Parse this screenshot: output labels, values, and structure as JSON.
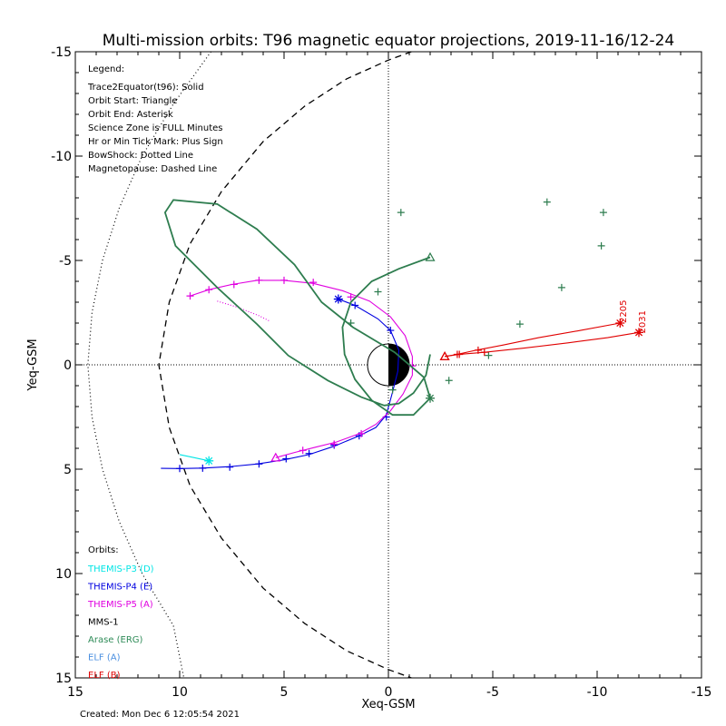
{
  "chart_data": {
    "type": "line",
    "title": "Multi-mission orbits: T96 magnetic equator projections, 2019-11-16/12-24",
    "xlabel": "Xeq-GSM",
    "ylabel": "Yeq-GSM",
    "xlim": [
      15,
      -15
    ],
    "ylim": [
      -15,
      15
    ],
    "x_ticks": [
      "15",
      "10",
      "5",
      "0",
      "-5",
      "-10",
      "-15"
    ],
    "y_ticks": [
      "-15",
      "-10",
      "-5",
      "0",
      "5",
      "10",
      "15"
    ],
    "legend_title": "Legend:",
    "legend_lines": [
      "Trace2Equator(t96): Solid",
      "Orbit Start: Triangle",
      "Orbit End: Asterisk",
      "Science Zone is FULL Minutes",
      "Hr or Min Tick Mark: Plus Sign",
      "BowShock: Dotted Line",
      "Magnetopause: Dashed Line"
    ],
    "orbits_title": "Orbits:",
    "orbit_labels": [
      {
        "name": "THEMIS-P3 (D)",
        "color": "#00e5e5"
      },
      {
        "name": "THEMIS-P4 (E)",
        "color": "#0000e0"
      },
      {
        "name": "THEMIS-P5 (A)",
        "color": "#e000e0"
      },
      {
        "name": "MMS-1",
        "color": "#000000"
      },
      {
        "name": "Arase (ERG)",
        "color": "#2e8b57"
      },
      {
        "name": "ELF (A)",
        "color": "#4a8fe0"
      },
      {
        "name": "ELF (B)",
        "color": "#e00000"
      }
    ],
    "annotations": [
      {
        "text": "2205",
        "x": -11.4,
        "y": -2.0
      },
      {
        "text": "2031",
        "x": -12.3,
        "y": -1.5
      }
    ],
    "created": "Created: Mon Dec  6 12:05:54 2021",
    "series": [
      {
        "name": "THEMIS-P3 (D)",
        "color": "#00e5e5",
        "x": [
          10.0,
          9.3,
          8.6
        ],
        "y": [
          4.3,
          4.45,
          4.6
        ],
        "start": null,
        "end": [
          8.6,
          4.6
        ],
        "ticks": []
      },
      {
        "name": "THEMIS-P4 (E)",
        "color": "#0000e0",
        "x": [
          2.4,
          1.6,
          0.5,
          -0.1,
          -0.5,
          -0.45,
          -0.2,
          0.1,
          0.6,
          1.4,
          2.6,
          3.8,
          5.0,
          6.3,
          7.6,
          8.9,
          10.0,
          10.9
        ],
        "y": [
          -3.15,
          -2.85,
          -2.2,
          -1.65,
          -0.7,
          0.3,
          1.3,
          2.4,
          3.0,
          3.4,
          3.9,
          4.3,
          4.55,
          4.75,
          4.88,
          4.95,
          4.97,
          4.96
        ],
        "start": null,
        "end": [
          2.4,
          -3.15
        ],
        "ticks": [
          [
            1.6,
            -2.85
          ],
          [
            -0.1,
            -1.65
          ],
          [
            0.1,
            2.5
          ],
          [
            1.4,
            3.4
          ],
          [
            2.6,
            3.85
          ],
          [
            3.8,
            4.25
          ],
          [
            4.9,
            4.5
          ],
          [
            6.2,
            4.75
          ],
          [
            7.6,
            4.9
          ],
          [
            8.9,
            4.95
          ],
          [
            10.0,
            4.97
          ]
        ]
      },
      {
        "name": "THEMIS-P5 (A)",
        "color": "#e000e0",
        "x": [
          5.4,
          4.5,
          3.5,
          2.5,
          1.4,
          0.6,
          -0.1,
          -0.7,
          -1.15,
          -1.15,
          -0.8,
          -0.1,
          0.9,
          2.2,
          3.6,
          5.0,
          6.3,
          7.5,
          8.6,
          9.5
        ],
        "y": [
          4.45,
          4.2,
          3.95,
          3.7,
          3.3,
          2.85,
          2.2,
          1.4,
          0.5,
          -0.4,
          -1.4,
          -2.3,
          -3.05,
          -3.55,
          -3.9,
          -4.05,
          -4.05,
          -3.85,
          -3.6,
          -3.3
        ],
        "start": [
          5.4,
          4.45
        ],
        "end": null,
        "ticks": [
          [
            4.1,
            4.1
          ],
          [
            2.6,
            3.8
          ],
          [
            1.3,
            3.3
          ],
          [
            -1.15,
            0.05
          ],
          [
            1.8,
            -3.25
          ],
          [
            3.6,
            -3.95
          ],
          [
            5.0,
            -4.05
          ],
          [
            6.2,
            -4.05
          ],
          [
            7.4,
            -3.85
          ],
          [
            8.6,
            -3.6
          ],
          [
            9.5,
            -3.3
          ]
        ]
      },
      {
        "name": "THEMIS-P5 (A) dotted",
        "color": "#e000e0",
        "dotted": true,
        "x": [
          8.2,
          7.2,
          6.2,
          5.7
        ],
        "y": [
          -3.05,
          -2.75,
          -2.35,
          -2.1
        ],
        "start": null,
        "end": null,
        "ticks": []
      },
      {
        "name": "Arase (ERG)",
        "color": "#2e7d4f",
        "x": [
          -2.0,
          -0.5,
          0.8,
          1.8,
          2.2,
          2.1,
          1.6,
          0.8,
          -0.2,
          -1.2,
          -2.0,
          -1.7,
          -0.3,
          1.7,
          3.2,
          4.5,
          6.3,
          8.2,
          10.3,
          10.7,
          10.2,
          8.2,
          6.3,
          4.8,
          2.9,
          1.3,
          0.2,
          -0.5,
          -1.2,
          -1.8,
          -2.0
        ],
        "y": [
          -5.15,
          -4.6,
          -4.0,
          -3.0,
          -1.8,
          -0.5,
          0.7,
          1.7,
          2.4,
          2.4,
          1.6,
          0.6,
          -0.6,
          -1.8,
          -3.0,
          -4.8,
          -6.5,
          -7.7,
          -7.9,
          -7.3,
          -5.7,
          -3.7,
          -1.95,
          -0.45,
          0.75,
          1.55,
          1.95,
          1.85,
          1.35,
          0.5,
          -0.5
        ],
        "start": [
          -2.0,
          -5.15
        ],
        "end": [
          -2.0,
          1.6
        ],
        "ticks": [
          [
            0.5,
            -3.5
          ],
          [
            1.8,
            -2.0
          ],
          [
            -0.6,
            -7.3
          ],
          [
            -7.6,
            -7.8
          ],
          [
            -10.3,
            -7.3
          ],
          [
            -10.2,
            -5.7
          ],
          [
            -8.3,
            -3.7
          ],
          [
            -6.3,
            -1.95
          ],
          [
            -4.8,
            -0.45
          ],
          [
            -2.9,
            0.75
          ],
          [
            -0.2,
            1.2
          ]
        ]
      },
      {
        "name": "ELF (B) 2205",
        "color": "#e00000",
        "x": [
          -2.7,
          -3.3,
          -4.2,
          -5.5,
          -7.2,
          -9.2,
          -11.1
        ],
        "y": [
          -0.4,
          -0.5,
          -0.7,
          -0.95,
          -1.3,
          -1.65,
          -2.0
        ],
        "start": [
          -2.7,
          -0.4
        ],
        "end": [
          -11.1,
          -2.0
        ],
        "ticks": [
          [
            -3.3,
            -0.5
          ],
          [
            -4.3,
            -0.7
          ]
        ]
      },
      {
        "name": "ELF (B) 2031",
        "color": "#e00000",
        "x": [
          -2.7,
          -3.4,
          -4.6,
          -6.5,
          -8.6,
          -10.5,
          -12.0
        ],
        "y": [
          -0.4,
          -0.5,
          -0.6,
          -0.8,
          -1.05,
          -1.3,
          -1.55
        ],
        "start": [
          -2.7,
          -0.4
        ],
        "end": [
          -12.0,
          -1.55
        ],
        "ticks": [
          [
            -3.4,
            -0.5
          ],
          [
            -4.6,
            -0.6
          ]
        ]
      }
    ],
    "magnetopause": {
      "style": "dashed",
      "color": "#000000",
      "x": [
        -1.1,
        0,
        2,
        4,
        6,
        8,
        9.5,
        10.5,
        11.0,
        10.5,
        9.5,
        8,
        6,
        4,
        2,
        0,
        -1.1
      ],
      "y": [
        -15,
        -14.6,
        -13.7,
        -12.4,
        -10.7,
        -8.3,
        -5.8,
        -3.0,
        0,
        3.0,
        5.8,
        8.3,
        10.7,
        12.4,
        13.7,
        14.6,
        15
      ]
    },
    "bowshock": {
      "style": "dotted",
      "color": "#000000",
      "x": [
        8.5,
        10.3,
        11.8,
        12.9,
        13.7,
        14.2,
        14.4,
        14.2,
        13.7,
        12.9,
        11.8,
        10.3,
        9.8
      ],
      "y": [
        -15,
        -12.5,
        -10.0,
        -7.5,
        -5.0,
        -2.5,
        0,
        2.5,
        5.0,
        7.5,
        10.0,
        12.5,
        15
      ]
    }
  }
}
